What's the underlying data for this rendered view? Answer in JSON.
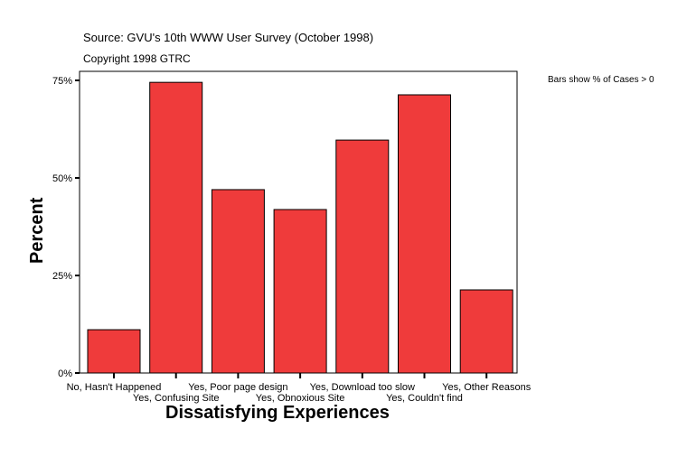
{
  "header": {
    "source": "Source: GVU's 10th WWW User Survey (October 1998)",
    "copyright": "Copyright 1998 GTRC"
  },
  "note": "Bars show % of Cases > 0",
  "chart_data": {
    "type": "bar",
    "title": "",
    "xlabel": "Dissatisfying Experiences",
    "ylabel": "Percent",
    "categories": [
      "No, Hasn't Happened",
      "Yes, Confusing Site",
      "Yes, Poor page design",
      "Yes, Obnoxious Site",
      "Yes, Download too slow",
      "Yes, Couldn't find",
      "Yes, Other Reasons"
    ],
    "values": [
      11.1,
      74.5,
      47.0,
      41.9,
      59.7,
      71.3,
      21.3
    ],
    "ylim": [
      0,
      77.3
    ],
    "yticks": [
      0,
      25,
      50,
      75
    ],
    "ytick_labels": [
      "0%",
      "25%",
      "50%",
      "75%"
    ],
    "bar_color": "#ef3b3b",
    "grid": false,
    "legend": "none"
  }
}
